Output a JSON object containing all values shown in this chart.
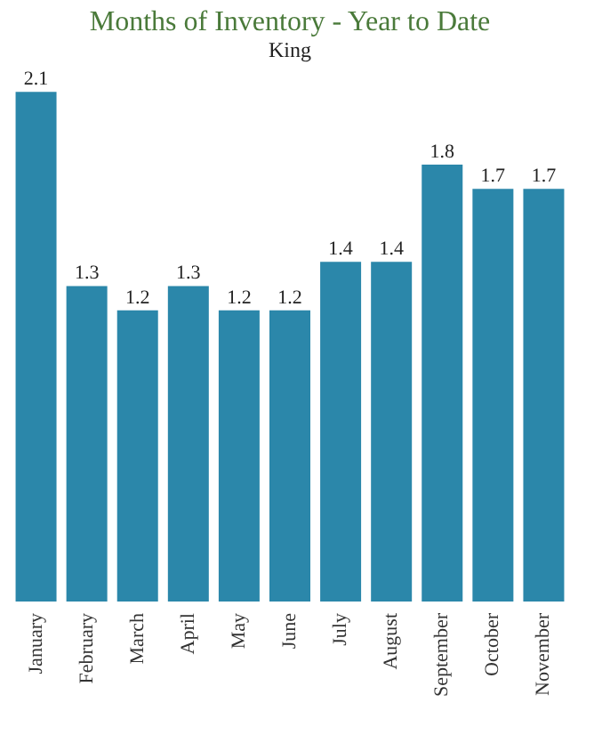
{
  "chart_data": {
    "type": "bar",
    "title": "Months of Inventory - Year to Date",
    "subtitle": "King",
    "categories": [
      "January",
      "February",
      "March",
      "April",
      "May",
      "June",
      "July",
      "August",
      "September",
      "October",
      "November"
    ],
    "values": [
      2.1,
      1.3,
      1.2,
      1.3,
      1.2,
      1.2,
      1.4,
      1.4,
      1.8,
      1.7,
      1.7
    ],
    "color": "#2b87aa",
    "data_labels": true,
    "grid": false
  }
}
